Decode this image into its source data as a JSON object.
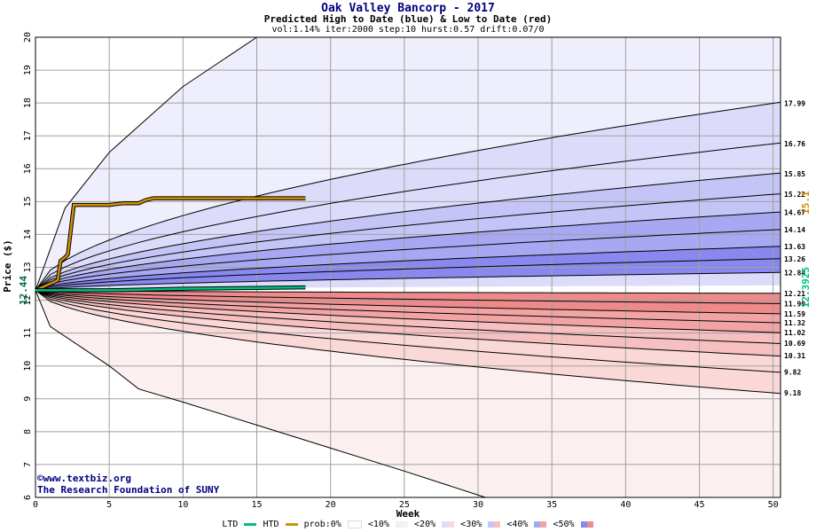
{
  "header": {
    "title": "Oak Valley Bancorp - 2017",
    "subtitle": "Predicted High to Date (blue) &  Low to Date (red)",
    "params": "vol:1.14% iter:2000 step:10 hurst:0.57 drift:0.07/0"
  },
  "credit": {
    "line1": "©www.textbiz.org",
    "line2": "The Research Foundation of SUNY"
  },
  "legend": {
    "ltd": "LTD",
    "htd": "HTD",
    "prob_label": "prob:0%",
    "b10": "<10%",
    "b20": "<20%",
    "b30": "<30%",
    "b40": "<40%",
    "b50": "<50%"
  },
  "colors": {
    "ltd_line": "#00c080",
    "htd_line": "#d09000",
    "grid": "#a0a0a0",
    "blue_band_1": "#eeeefc",
    "blue_band_2": "#dcdcfa",
    "blue_band_3": "#c4c4f6",
    "blue_band_4": "#a8a8f2",
    "blue_band_5": "#8888ee",
    "red_band_1": "#fcefef",
    "red_band_2": "#fad8d8",
    "red_band_3": "#f6c0c0",
    "red_band_4": "#f2a4a4",
    "red_band_5": "#ee8a8a"
  },
  "chart_data": {
    "type": "area",
    "title": "Oak Valley Bancorp - 2017",
    "xlabel": "Week",
    "ylabel": "Price ($)",
    "xlim": [
      0,
      50.5
    ],
    "ylim": [
      6,
      20
    ],
    "x_ticks": [
      0,
      5,
      10,
      15,
      20,
      25,
      30,
      35,
      40,
      45,
      50
    ],
    "y_ticks": [
      6,
      7,
      8,
      9,
      10,
      11,
      12,
      13,
      14,
      15,
      16,
      17,
      18,
      19,
      20
    ],
    "grid": true,
    "start_price": 12.3,
    "left_marker_label": "12.44",
    "right_markers": [
      {
        "label": "15.1",
        "color": "#d09000"
      },
      {
        "label": "12.3925",
        "color": "#00c080"
      }
    ],
    "high_percentile_endpoints": [
      12.84,
      13.26,
      13.63,
      14.14,
      14.67,
      15.22,
      15.85,
      16.76,
      17.99
    ],
    "low_percentile_endpoints": [
      12.21,
      11.9,
      11.59,
      11.32,
      11.02,
      10.69,
      10.31,
      9.82,
      9.18
    ],
    "end_labels": [
      "17.99",
      "16.76",
      "15.85",
      "15.22",
      "14.67",
      "14.14",
      "13.63",
      "13.26",
      "12.84",
      "12.21",
      "11.90",
      "11.59",
      "11.32",
      "11.02",
      "10.69",
      "10.31",
      "9.82",
      "9.18"
    ],
    "envelope_upper": {
      "x": [
        0,
        2,
        5,
        10,
        15,
        30,
        40,
        50
      ],
      "y": [
        12.3,
        14.8,
        16.5,
        18.5,
        20,
        20,
        20,
        20
      ]
    },
    "envelope_lower": {
      "x": [
        0,
        1,
        5,
        7,
        10,
        15,
        20,
        25,
        30.5
      ],
      "y": [
        12.3,
        11.2,
        10,
        9.3,
        8.9,
        8.2,
        7.5,
        6.8,
        6
      ]
    },
    "series": [
      {
        "name": "HTD",
        "x": [
          0,
          1,
          1.5,
          1.7,
          2,
          2.2,
          2.6,
          3,
          5,
          6,
          7,
          7.5,
          8,
          10,
          18.3
        ],
        "y": [
          12.3,
          12.5,
          12.6,
          13.2,
          13.3,
          13.4,
          14.9,
          14.9,
          14.9,
          14.95,
          14.95,
          15.05,
          15.1,
          15.1,
          15.1
        ]
      },
      {
        "name": "LTD",
        "x": [
          0,
          2,
          5,
          10,
          18.3
        ],
        "y": [
          12.3,
          12.3,
          12.3,
          12.35,
          12.39
        ]
      }
    ]
  }
}
